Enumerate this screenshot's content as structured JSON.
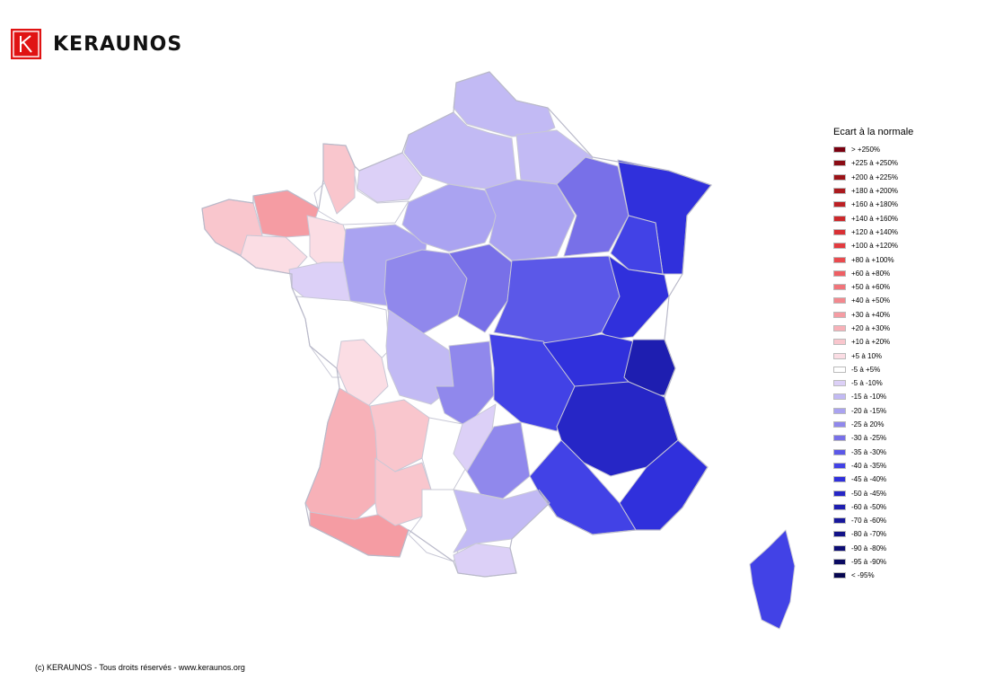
{
  "brand": {
    "name": "KERAUNOS",
    "logo_letter": "K",
    "color": "#e01313"
  },
  "legend": {
    "title": "Ecart à la normale",
    "items": [
      {
        "label": "> +250%",
        "color": "#7a0010"
      },
      {
        "label": "+225 à +250%",
        "color": "#8a0b14"
      },
      {
        "label": "+200 à +225%",
        "color": "#9b1318"
      },
      {
        "label": "+180 à +200%",
        "color": "#ab1a1e"
      },
      {
        "label": "+160 à +180%",
        "color": "#bd2024"
      },
      {
        "label": "+140 à +160%",
        "color": "#cc282b"
      },
      {
        "label": "+120 à +140%",
        "color": "#d93034"
      },
      {
        "label": "+100 à +120%",
        "color": "#e33b3f"
      },
      {
        "label": "+80 à +100%",
        "color": "#ea4a4e"
      },
      {
        "label": "+60 à +80%",
        "color": "#ee5f64"
      },
      {
        "label": "+50 à +60%",
        "color": "#f1747a"
      },
      {
        "label": "+40 à +50%",
        "color": "#f3888e"
      },
      {
        "label": "+30 à +40%",
        "color": "#f59ca3"
      },
      {
        "label": "+20 à +30%",
        "color": "#f7b1b8"
      },
      {
        "label": "+10 à +20%",
        "color": "#f9c6cd"
      },
      {
        "label": "+5 à 10%",
        "color": "#fbdde4"
      },
      {
        "label": "-5 à +5%",
        "color": "#ffffff"
      },
      {
        "label": "-5 à -10%",
        "color": "#dcd0f7"
      },
      {
        "label": "-15 à -10%",
        "color": "#c2baf4"
      },
      {
        "label": "-20 à -15%",
        "color": "#aaa3f1"
      },
      {
        "label": "-25 à 20%",
        "color": "#9088ec"
      },
      {
        "label": "-30 à -25%",
        "color": "#7870e8"
      },
      {
        "label": "-35 à -30%",
        "color": "#5b58e8"
      },
      {
        "label": "-40 à -35%",
        "color": "#4242e6"
      },
      {
        "label": "-45 à -40%",
        "color": "#3030dc"
      },
      {
        "label": "-50 à -45%",
        "color": "#2626c6"
      },
      {
        "label": "-60 à -50%",
        "color": "#1e1eb0"
      },
      {
        "label": "-70 à -60%",
        "color": "#18189c"
      },
      {
        "label": "-80 à -70%",
        "color": "#121288"
      },
      {
        "label": "-90 à -80%",
        "color": "#0d0d74"
      },
      {
        "label": "-95 à -90%",
        "color": "#0a0a62"
      },
      {
        "label": "< -95%",
        "color": "#060650"
      }
    ]
  },
  "map": {
    "regions": [
      {
        "name": "nord",
        "color": "#c2baf4"
      },
      {
        "name": "picardie",
        "color": "#c2baf4"
      },
      {
        "name": "haute-normandie",
        "color": "#dcd0f7"
      },
      {
        "name": "basse-normandie",
        "color": "#ffffff"
      },
      {
        "name": "cotentin",
        "color": "#f9c6cd"
      },
      {
        "name": "bretagne-ouest",
        "color": "#f9c6cd"
      },
      {
        "name": "cotes-d-armor",
        "color": "#f59ca3"
      },
      {
        "name": "bretagne-sud",
        "color": "#fbdde4"
      },
      {
        "name": "ile-et-vilaine",
        "color": "#fbdde4"
      },
      {
        "name": "loire-atlantique",
        "color": "#dcd0f7"
      },
      {
        "name": "pays-de-loire-est",
        "color": "#aaa3f1"
      },
      {
        "name": "ile-de-france",
        "color": "#aaa3f1"
      },
      {
        "name": "champagne",
        "color": "#aaa3f1"
      },
      {
        "name": "ardennes",
        "color": "#c2baf4"
      },
      {
        "name": "lorraine-ouest",
        "color": "#7870e8"
      },
      {
        "name": "alsace",
        "color": "#3030dc"
      },
      {
        "name": "lorraine-est",
        "color": "#4242e6"
      },
      {
        "name": "centre",
        "color": "#9088ec"
      },
      {
        "name": "bourgogne-ouest",
        "color": "#7870e8"
      },
      {
        "name": "bourgogne",
        "color": "#5b58e8"
      },
      {
        "name": "franche-comte",
        "color": "#3030dc"
      },
      {
        "name": "vendee-charente",
        "color": "#ffffff"
      },
      {
        "name": "deux-sevres",
        "color": "#fbdde4"
      },
      {
        "name": "limousin-ouest",
        "color": "#c2baf4"
      },
      {
        "name": "limousin-est",
        "color": "#9088ec"
      },
      {
        "name": "auvergne",
        "color": "#4242e6"
      },
      {
        "name": "rhone",
        "color": "#3030dc"
      },
      {
        "name": "savoie",
        "color": "#1e1eb0"
      },
      {
        "name": "alpes",
        "color": "#2626c6"
      },
      {
        "name": "cote-d-azur",
        "color": "#3030dc"
      },
      {
        "name": "gironde-landes",
        "color": "#f7b1b8"
      },
      {
        "name": "dordogne",
        "color": "#f9c6cd"
      },
      {
        "name": "lot",
        "color": "#ffffff"
      },
      {
        "name": "aveyron",
        "color": "#dcd0f7"
      },
      {
        "name": "lozere-gard",
        "color": "#9088ec"
      },
      {
        "name": "pyrenees-ouest",
        "color": "#f59ca3"
      },
      {
        "name": "gers",
        "color": "#f9c6cd"
      },
      {
        "name": "toulouse",
        "color": "#ffffff"
      },
      {
        "name": "herault-aude",
        "color": "#c2baf4"
      },
      {
        "name": "pyrenees-orientales",
        "color": "#dcd0f7"
      },
      {
        "name": "provence",
        "color": "#4242e6"
      },
      {
        "name": "corse",
        "color": "#4242e6"
      }
    ]
  },
  "footer": {
    "copyright": "(c) KERAUNOS - Tous droits réservés - www.keraunos.org"
  }
}
